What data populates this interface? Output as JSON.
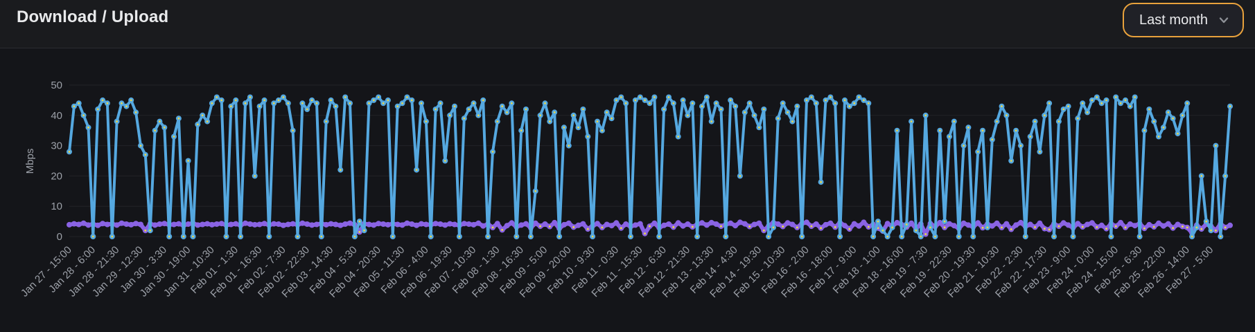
{
  "panel": {
    "title": "Download / Upload"
  },
  "time_range": {
    "label": "Last month"
  },
  "colors": {
    "accent_border": "#E9A23C",
    "background": "#141519",
    "header_background": "#1A1B1E",
    "axis_text": "#9CA0A8",
    "grid": "rgba(204,209,217,0.08)",
    "download": "#55A8E0",
    "upload": "#8A63E4",
    "point_center": "#E5D54F"
  },
  "chart_data": {
    "type": "line",
    "title": "Download / Upload",
    "xlabel": "",
    "ylabel": "Mbps",
    "ylim": [
      0,
      50
    ],
    "yticks": [
      0,
      10,
      20,
      30,
      40,
      50
    ],
    "grid": true,
    "legend": "none",
    "points_per_tick": 5,
    "x_tick_labels": [
      "Jan 27 - 15:00",
      "Jan 28 - 6:00",
      "Jan 28 - 21:30",
      "Jan 29 - 12:30",
      "Jan 30 - 3:30",
      "Jan 30 - 19:00",
      "Jan 31 - 10:30",
      "Feb 01 - 1:30",
      "Feb 01 - 16:30",
      "Feb 02 - 7:30",
      "Feb 02 - 22:30",
      "Feb 03 - 14:30",
      "Feb 04 - 5:30",
      "Feb 04 - 20:30",
      "Feb 05 - 11:30",
      "Feb 06 - 4:00",
      "Feb 06 - 19:30",
      "Feb 07 - 10:30",
      "Feb 08 - 1:30",
      "Feb 08 - 16:30",
      "Feb 09 - 5:00",
      "Feb 09 - 20:00",
      "Feb 10 - 9:30",
      "Feb 11 - 0:30",
      "Feb 11 - 15:30",
      "Feb 12 - 6:30",
      "Feb 12 - 21:30",
      "Feb 13 - 13:30",
      "Feb 14 - 4:30",
      "Feb 14 - 19:30",
      "Feb 15 - 10:30",
      "Feb 16 - 2:00",
      "Feb 16 - 18:00",
      "Feb 17 - 9:00",
      "Feb 18 - 1:00",
      "Feb 18 - 16:00",
      "Feb 19 - 7:30",
      "Feb 19 - 22:30",
      "Feb 20 - 19:30",
      "Feb 21 - 10:30",
      "Feb 22 - 2:30",
      "Feb 22 - 17:30",
      "Feb 23 - 9:00",
      "Feb 24 - 0:00",
      "Feb 24 - 15:00",
      "Feb 25 - 6:30",
      "Feb 25 - 22:00",
      "Feb 26 - 14:00",
      "Feb 27 - 5:00"
    ],
    "series": [
      {
        "name": "Upload",
        "color": "#8A63E4",
        "point_color": "#E5D54F",
        "line_width": 6,
        "values": [
          3.9,
          4.2,
          4.0,
          4.4,
          3.8,
          4.1,
          3.7,
          4.3,
          4.0,
          4.2,
          3.8,
          4.4,
          4.1,
          3.9,
          4.3,
          4.0,
          2.0,
          4.2,
          3.8,
          4.1,
          4.3,
          3.9,
          4.0,
          4.2,
          3.7,
          4.1,
          4.4,
          3.8,
          4.0,
          4.2,
          3.9,
          4.1,
          4.3,
          3.8,
          4.0,
          4.2,
          3.7,
          4.4,
          4.1,
          3.9,
          4.0,
          4.3,
          3.8,
          4.2,
          4.1,
          3.7,
          4.0,
          4.2,
          3.9,
          4.4,
          4.1,
          3.8,
          4.0,
          4.3,
          3.9,
          4.2,
          4.0,
          3.7,
          4.1,
          4.4,
          3.9,
          1.5,
          4.2,
          4.0,
          3.8,
          4.3,
          4.1,
          3.9,
          4.2,
          4.0,
          3.8,
          4.4,
          4.1,
          3.7,
          4.2,
          4.0,
          3.9,
          4.3,
          4.1,
          3.8,
          4.2,
          4.0,
          3.7,
          4.3,
          4.1,
          3.9,
          4.4,
          3.5,
          4.1,
          3.0,
          4.3,
          2.2,
          3.6,
          4.5,
          3.2,
          3.8,
          4.2,
          2.9,
          4.4,
          3.4,
          4.1,
          3.3,
          4.6,
          2.7,
          3.9,
          4.4,
          3.1,
          3.7,
          4.2,
          2.5,
          3.5,
          4.3,
          3.0,
          4.0,
          3.6,
          4.5,
          2.8,
          4.1,
          3.3,
          3.8,
          4.2,
          1.0,
          3.4,
          4.4,
          2.9,
          3.7,
          4.1,
          3.1,
          4.5,
          3.5,
          4.1,
          3.2,
          4.0,
          4.5,
          3.8,
          4.6,
          4.1,
          3.4,
          4.0,
          4.4,
          3.6,
          4.7,
          4.2,
          3.3,
          4.0,
          4.4,
          2.0,
          3.5,
          4.6,
          4.1,
          3.3,
          4.5,
          4.0,
          3.0,
          4.3,
          4.7,
          3.4,
          4.1,
          2.8,
          3.9,
          4.4,
          3.1,
          4.6,
          3.6,
          2.5,
          4.2,
          3.5,
          4.7,
          3.2,
          4.0,
          2.8,
          1.8,
          4.3,
          3.4,
          4.6,
          3.9,
          3.1,
          4.4,
          2.6,
          4.1,
          0.8,
          4.3,
          3.3,
          4.6,
          3.0,
          4.2,
          3.6,
          2.7,
          4.4,
          3.8,
          3.2,
          4.5,
          2.9,
          4.1,
          3.5,
          4.4,
          3.0,
          4.2,
          2.4,
          3.8,
          4.6,
          3.3,
          4.0,
          3.1,
          4.4,
          2.6,
          2.3,
          4.2,
          3.4,
          4.5,
          3.8,
          2.9,
          4.3,
          3.2,
          4.0,
          4.5,
          3.1,
          3.7,
          2.6,
          4.2,
          3.4,
          4.6,
          3.0,
          4.1,
          3.6,
          4.3,
          2.7,
          3.9,
          3.2,
          4.4,
          3.5,
          4.2,
          2.8,
          4.0,
          3.3,
          3.0,
          1.2,
          3.8,
          2.5,
          4.1,
          3.4,
          2.0,
          4.2,
          3.0,
          3.7
        ]
      },
      {
        "name": "Download",
        "color": "#55A8E0",
        "point_color": "#E5D54F",
        "line_width": 4,
        "values": [
          28,
          43,
          44,
          40,
          36,
          0,
          42,
          45,
          44,
          0,
          38,
          44,
          43,
          45,
          41,
          30,
          27,
          2,
          35,
          38,
          36,
          0,
          33,
          39,
          0,
          25,
          0,
          37,
          40,
          38,
          44,
          46,
          45,
          0,
          43,
          45,
          0,
          44,
          46,
          20,
          43,
          45,
          0,
          44,
          45,
          46,
          44,
          35,
          0,
          44,
          42,
          45,
          44,
          0,
          38,
          45,
          43,
          22,
          46,
          44,
          0,
          5,
          2,
          44,
          45,
          46,
          44,
          45,
          0,
          43,
          44,
          46,
          45,
          22,
          44,
          38,
          0,
          42,
          44,
          25,
          40,
          43,
          0,
          39,
          42,
          44,
          40,
          45,
          0,
          28,
          38,
          43,
          41,
          44,
          0,
          35,
          42,
          0,
          15,
          40,
          44,
          38,
          41,
          0,
          36,
          30,
          40,
          36,
          42,
          33,
          0,
          38,
          35,
          41,
          39,
          45,
          46,
          44,
          0,
          45,
          46,
          45,
          44,
          46,
          0,
          42,
          46,
          44,
          33,
          45,
          40,
          44,
          0,
          43,
          46,
          38,
          44,
          42,
          0,
          45,
          43,
          20,
          41,
          44,
          40,
          36,
          42,
          0,
          3,
          39,
          44,
          41,
          38,
          43,
          0,
          45,
          46,
          44,
          18,
          45,
          46,
          44,
          0,
          45,
          43,
          44,
          46,
          45,
          44,
          0,
          5,
          2,
          0,
          3,
          35,
          0,
          4,
          38,
          2,
          0,
          40,
          3,
          0,
          35,
          5,
          33,
          38,
          0,
          30,
          36,
          0,
          28,
          35,
          3,
          32,
          38,
          43,
          40,
          25,
          35,
          30,
          0,
          33,
          38,
          28,
          40,
          44,
          0,
          38,
          42,
          43,
          0,
          39,
          44,
          41,
          45,
          46,
          44,
          45,
          0,
          46,
          44,
          45,
          43,
          46,
          0,
          35,
          42,
          38,
          33,
          36,
          41,
          39,
          34,
          40,
          44,
          0,
          3,
          20,
          5,
          2,
          30,
          0,
          20,
          43
        ]
      }
    ]
  }
}
